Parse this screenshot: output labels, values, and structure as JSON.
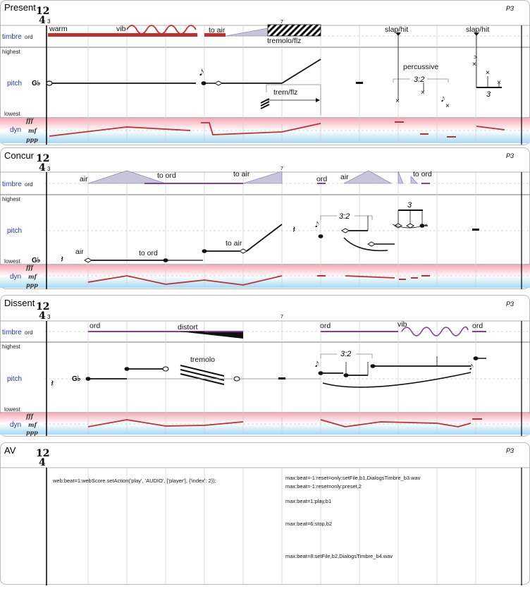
{
  "score": {
    "time_sig_num": "12",
    "time_sig_den": "4",
    "bar_start": "3",
    "bar_mid": "7",
    "page": "P3",
    "row_labels": {
      "timbre": "timbre",
      "pitch": "pitch",
      "dyn": "dyn",
      "ord": "ord",
      "highest": "highest",
      "lowest": "lowest",
      "fff": "fff",
      "mf": "mf",
      "ppp": "ppp",
      "clef": "G♭"
    }
  },
  "panels": [
    {
      "title": "Present",
      "annotations": {
        "warm": "warm",
        "vib": "vib",
        "to_air": "to air",
        "tremolo_flz": "tremolo/flz",
        "slap_hit_1": "slap/hit",
        "slap_hit_2": "slap/hit",
        "trem_flz": "trem/flz",
        "percussive": "percussive",
        "tuplet": "3:2",
        "triplet": "3"
      }
    },
    {
      "title": "Concur",
      "annotations": {
        "air_1": "air",
        "to_ord_1": "to ord",
        "to_air_1": "to air",
        "ord": "ord",
        "air_2": "air",
        "to_ord_2": "to ord",
        "p_air": "air",
        "p_to_ord": "to ord",
        "p_to_air": "to air",
        "tuplet": "3:2",
        "triplet": "3"
      }
    },
    {
      "title": "Dissent",
      "annotations": {
        "ord_1": "ord",
        "distort": "distort",
        "ord_2": "ord",
        "vib": "vib",
        "ord_3": "ord",
        "tremolo": "tremolo",
        "tuplet": "3:2"
      }
    },
    {
      "title": "AV",
      "commands": [
        "web:beat=1:webScore.setAction('play', 'AUDIO', ['player'], {'index': 2});",
        "max:beat=-1:reset=only:setFile,b1,DialogsTimbre_b3.wav",
        "max:beat=-1:reset=only:preset,2",
        "max:beat=1:play,b1",
        "max:beat=6:stop,b2",
        "max:beat=8:setFile,b2,DialogsTimbre_b4.wav"
      ]
    }
  ]
}
